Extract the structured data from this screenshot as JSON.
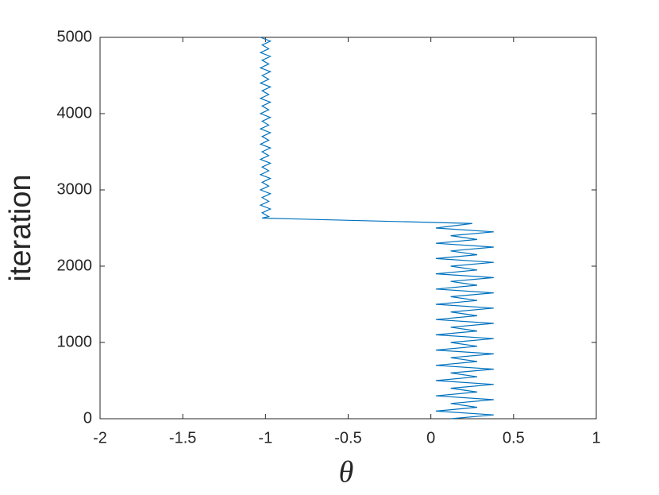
{
  "chart_data": {
    "type": "line",
    "xlabel": "θ",
    "ylabel": "iteration",
    "xlim": [
      -2,
      1
    ],
    "xticks": [
      -2,
      -1.5,
      -1,
      -0.5,
      0,
      0.5,
      1
    ],
    "ylim": [
      0,
      5000
    ],
    "yticks": [
      0,
      1000,
      2000,
      3000,
      4000,
      5000
    ],
    "series": [
      {
        "color": "#0072bd",
        "x": [
          0.12,
          0.38,
          0.03,
          0.28,
          0.12,
          0.38,
          0.03,
          0.28,
          0.12,
          0.38,
          0.03,
          0.28,
          0.12,
          0.38,
          0.03,
          0.28,
          0.12,
          0.38,
          0.03,
          0.28,
          0.12,
          0.38,
          0.03,
          0.28,
          0.12,
          0.38,
          0.03,
          0.28,
          0.12,
          0.38,
          0.03,
          0.28,
          0.12,
          0.38,
          0.03,
          0.28,
          0.12,
          0.38,
          0.03,
          0.28,
          0.12,
          0.38,
          0.03,
          0.28,
          0.12,
          0.38,
          0.03,
          0.28,
          0.12,
          0.38,
          0.03,
          0.25,
          -1.02,
          -0.98,
          -1.02,
          -0.97,
          -1.03,
          -0.98,
          -1.02,
          -0.97,
          -1.03,
          -0.98,
          -1.02,
          -0.97,
          -1.03,
          -0.98,
          -1.02,
          -0.97,
          -1.03,
          -0.98,
          -1.02,
          -0.97,
          -1.03,
          -0.98,
          -1.02,
          -0.97,
          -1.03,
          -0.98,
          -1.02,
          -0.97,
          -1.03,
          -0.98,
          -1.02,
          -0.97,
          -1.03,
          -0.98,
          -1.02,
          -0.97,
          -1.03,
          -0.98,
          -1.02,
          -0.97,
          -1.03,
          -0.98,
          -1.02,
          -0.97,
          -1.03,
          -0.98,
          -1.02,
          -0.97,
          -1.03
        ],
        "values": [
          0,
          50,
          100,
          150,
          200,
          250,
          300,
          350,
          400,
          450,
          500,
          550,
          600,
          650,
          700,
          750,
          800,
          850,
          900,
          950,
          1000,
          1050,
          1100,
          1150,
          1200,
          1250,
          1300,
          1350,
          1400,
          1450,
          1500,
          1550,
          1600,
          1650,
          1700,
          1750,
          1800,
          1850,
          1900,
          1950,
          2000,
          2050,
          2100,
          2150,
          2200,
          2250,
          2300,
          2350,
          2400,
          2450,
          2500,
          2560,
          2630,
          2650,
          2700,
          2750,
          2800,
          2850,
          2900,
          2950,
          3000,
          3050,
          3100,
          3150,
          3200,
          3250,
          3300,
          3350,
          3400,
          3450,
          3500,
          3550,
          3600,
          3650,
          3700,
          3750,
          3800,
          3850,
          3900,
          3950,
          4000,
          4050,
          4100,
          4150,
          4200,
          4250,
          4300,
          4350,
          4400,
          4450,
          4500,
          4550,
          4600,
          4650,
          4700,
          4750,
          4800,
          4850,
          4900,
          4950,
          5000
        ]
      }
    ]
  }
}
